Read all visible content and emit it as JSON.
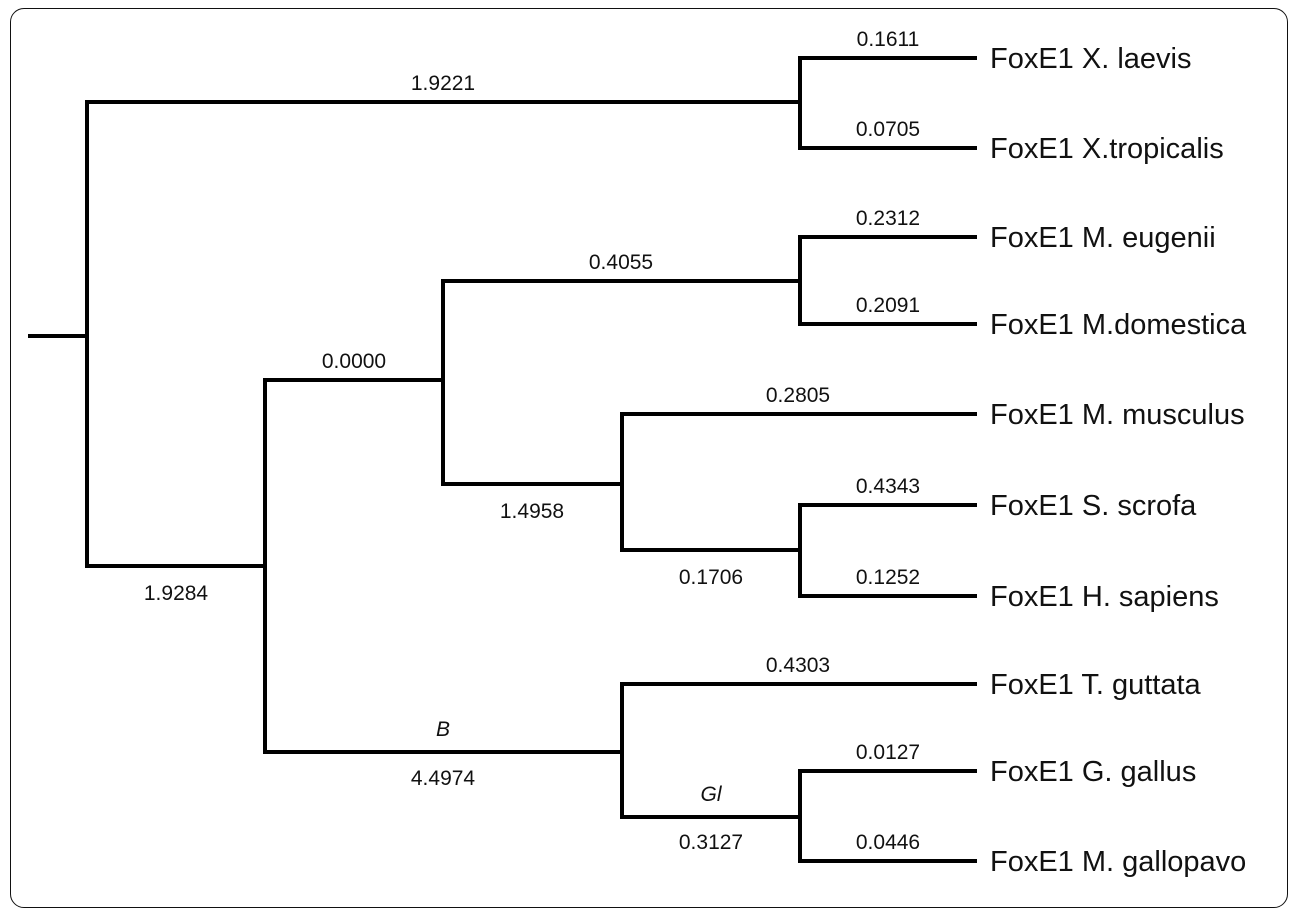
{
  "tree": {
    "branch_lengths": {
      "frog_xlaevis": "0.1611",
      "frog_xtropicalis": "0.0705",
      "frog_clade": "1.9221",
      "marsupial_meugenii": "0.2312",
      "marsupial_mdomestica": "0.2091",
      "marsupial_clade": "0.4055",
      "mammal_clade": "0.0000",
      "mmusculus": "0.2805",
      "eutherian_clade": "1.4958",
      "sscrofa": "0.4343",
      "hsapiens": "0.1252",
      "sscrofa_hsapiens_clade": "0.1706",
      "amniote_clade": "1.9284",
      "tguttata": "0.4303",
      "bird_clade": "4.4974",
      "ggallus": "0.0127",
      "mgallopavo": "0.0446",
      "galliform_clade": "0.3127"
    },
    "clade_labels": {
      "bird": "B",
      "galliform": "Gl"
    },
    "taxa": [
      "FoxE1 X. laevis",
      "FoxE1 X.tropicalis",
      "FoxE1 M. eugenii",
      "FoxE1 M.domestica",
      "FoxE1 M. musculus",
      "FoxE1 S. scrofa",
      "FoxE1 H. sapiens",
      "FoxE1 T. guttata",
      "FoxE1 G. gallus",
      "FoxE1 M. gallopavo"
    ]
  }
}
